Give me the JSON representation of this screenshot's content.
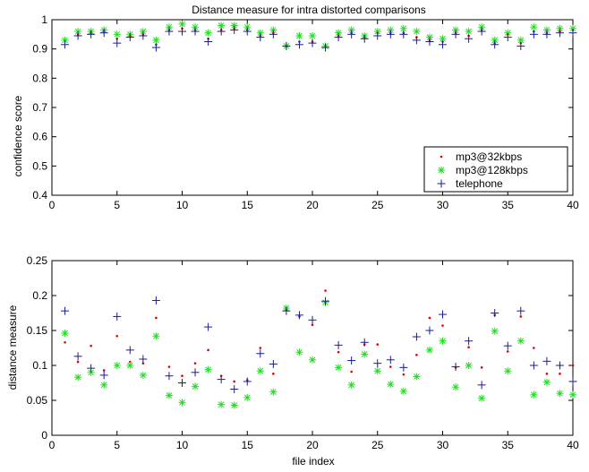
{
  "chart_data": [
    {
      "type": "scatter",
      "title": "Distance measure for intra distorted comparisons",
      "xlabel": "",
      "ylabel": "confidence score",
      "xlim": [
        0,
        40
      ],
      "ylim": [
        0.4,
        1
      ],
      "xticks": [
        0,
        5,
        10,
        15,
        20,
        25,
        30,
        35,
        40
      ],
      "yticks": [
        0.4,
        0.5,
        0.6,
        0.7,
        0.8,
        0.9,
        1
      ],
      "ytick_labels": [
        "0.4",
        "0.5",
        "0.6",
        "0.7",
        "0.8",
        "0.9",
        "1"
      ],
      "grid": false,
      "legend": "bottom-right",
      "x": [
        1,
        2,
        3,
        4,
        5,
        6,
        7,
        8,
        9,
        10,
        11,
        12,
        13,
        14,
        15,
        16,
        17,
        18,
        19,
        20,
        21,
        22,
        23,
        24,
        25,
        26,
        27,
        28,
        29,
        30,
        31,
        32,
        33,
        34,
        35,
        36,
        37,
        38,
        39,
        40
      ],
      "series": [
        {
          "name": "mp3@32kbps",
          "marker": "dot",
          "color": "#e00000",
          "values": [
            0.93,
            0.95,
            0.955,
            0.96,
            0.935,
            0.945,
            0.95,
            0.915,
            0.965,
            0.97,
            0.965,
            0.935,
            0.965,
            0.97,
            0.965,
            0.945,
            0.955,
            0.91,
            0.925,
            0.925,
            0.91,
            0.945,
            0.955,
            0.94,
            0.955,
            0.955,
            0.955,
            0.94,
            0.93,
            0.925,
            0.955,
            0.945,
            0.965,
            0.92,
            0.95,
            0.92,
            0.96,
            0.955,
            0.96,
            0.965
          ]
        },
        {
          "name": "mp3@128kbps",
          "marker": "asterisk",
          "color": "#22dd22",
          "values": [
            0.93,
            0.96,
            0.96,
            0.965,
            0.95,
            0.95,
            0.96,
            0.93,
            0.975,
            0.985,
            0.975,
            0.955,
            0.98,
            0.98,
            0.975,
            0.955,
            0.965,
            0.91,
            0.945,
            0.945,
            0.91,
            0.955,
            0.965,
            0.945,
            0.96,
            0.965,
            0.97,
            0.96,
            0.94,
            0.935,
            0.965,
            0.96,
            0.975,
            0.93,
            0.955,
            0.93,
            0.975,
            0.965,
            0.97,
            0.97
          ]
        },
        {
          "name": "telephone",
          "marker": "plus",
          "color": "#1a1a9a",
          "values": [
            0.915,
            0.945,
            0.95,
            0.955,
            0.92,
            0.94,
            0.945,
            0.905,
            0.96,
            0.96,
            0.96,
            0.925,
            0.96,
            0.965,
            0.96,
            0.94,
            0.95,
            0.91,
            0.915,
            0.92,
            0.905,
            0.94,
            0.95,
            0.935,
            0.945,
            0.95,
            0.95,
            0.93,
            0.925,
            0.915,
            0.95,
            0.935,
            0.96,
            0.915,
            0.94,
            0.91,
            0.95,
            0.95,
            0.955,
            0.955
          ]
        }
      ],
      "legend_entries": [
        "mp3@32kbps",
        "mp3@128kbps",
        "telephone"
      ]
    },
    {
      "type": "scatter",
      "title": "",
      "xlabel": "file index",
      "ylabel": "distance measure",
      "xlim": [
        0,
        40
      ],
      "ylim": [
        0,
        0.25
      ],
      "xticks": [
        0,
        5,
        10,
        15,
        20,
        25,
        30,
        35,
        40
      ],
      "yticks": [
        0,
        0.05,
        0.1,
        0.15,
        0.2,
        0.25
      ],
      "ytick_labels": [
        "0",
        "0.05",
        "0.1",
        "0.15",
        "0.2",
        "0.25"
      ],
      "grid": false,
      "x": [
        1,
        2,
        3,
        4,
        5,
        6,
        7,
        8,
        9,
        10,
        11,
        12,
        13,
        14,
        15,
        16,
        17,
        18,
        19,
        20,
        21,
        22,
        23,
        24,
        25,
        26,
        27,
        28,
        29,
        30,
        31,
        32,
        33,
        34,
        35,
        36,
        37,
        38,
        39,
        40
      ],
      "series": [
        {
          "name": "mp3@32kbps",
          "marker": "dot",
          "color": "#e00000",
          "values": [
            0.133,
            0.105,
            0.128,
            0.093,
            0.142,
            0.105,
            0.103,
            0.168,
            0.098,
            0.085,
            0.103,
            0.122,
            0.085,
            0.077,
            0.079,
            0.125,
            0.088,
            0.18,
            0.17,
            0.158,
            0.207,
            0.119,
            0.091,
            0.13,
            0.13,
            0.098,
            0.087,
            0.115,
            0.168,
            0.157,
            0.097,
            0.126,
            0.097,
            0.172,
            0.12,
            0.17,
            0.125,
            0.088,
            0.088,
            0.1
          ]
        },
        {
          "name": "mp3@128kbps",
          "marker": "asterisk",
          "color": "#22dd22",
          "values": [
            0.146,
            0.083,
            0.09,
            0.072,
            0.1,
            0.1,
            0.086,
            0.142,
            0.057,
            0.047,
            0.07,
            0.094,
            0.044,
            0.043,
            0.054,
            0.092,
            0.062,
            0.182,
            0.119,
            0.108,
            0.19,
            0.097,
            0.072,
            0.116,
            0.092,
            0.073,
            0.063,
            0.084,
            0.122,
            0.135,
            0.069,
            0.1,
            0.053,
            0.149,
            0.092,
            0.135,
            0.058,
            0.076,
            0.06,
            0.058
          ]
        },
        {
          "name": "telephone",
          "marker": "plus",
          "color": "#1a1a9a",
          "values": [
            0.178,
            0.113,
            0.096,
            0.086,
            0.17,
            0.122,
            0.109,
            0.193,
            0.085,
            0.075,
            0.09,
            0.155,
            0.08,
            0.066,
            0.077,
            0.117,
            0.102,
            0.178,
            0.172,
            0.165,
            0.192,
            0.129,
            0.107,
            0.133,
            0.103,
            0.108,
            0.097,
            0.141,
            0.15,
            0.173,
            0.098,
            0.135,
            0.072,
            0.175,
            0.128,
            0.178,
            0.1,
            0.106,
            0.1,
            0.077
          ]
        }
      ]
    }
  ]
}
